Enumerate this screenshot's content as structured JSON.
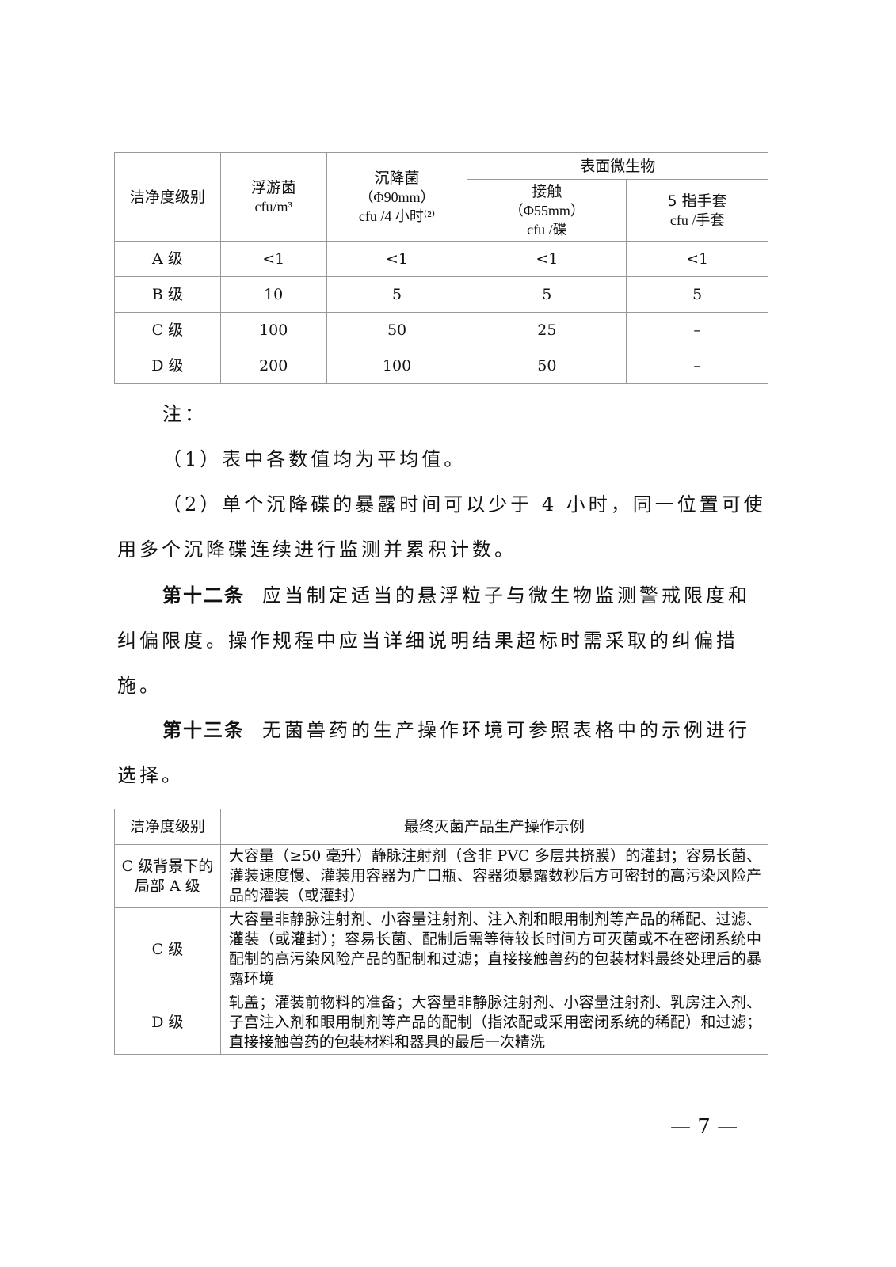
{
  "table1": {
    "headers": {
      "level": "洁净度级别",
      "airborne": "浮游菌",
      "airborne_unit": "cfu/m³",
      "settle": "沉降菌",
      "settle_dia": "（Φ90mm）",
      "settle_unit": "cfu /4 小时⁽²⁾",
      "surface": "表面微生物",
      "contact": "接触",
      "contact_dia": "（Φ55mm）",
      "contact_unit": "cfu /碟",
      "glove": "5 指手套",
      "glove_unit": "cfu /手套"
    },
    "rows": [
      [
        "A 级",
        "<1",
        "<1",
        "<1",
        "<1"
      ],
      [
        "B 级",
        "10",
        "5",
        "5",
        "5"
      ],
      [
        "C 级",
        "100",
        "50",
        "25",
        "–"
      ],
      [
        "D 级",
        "200",
        "100",
        "50",
        "–"
      ]
    ]
  },
  "notes": {
    "label": "注：",
    "n1": "（1）表中各数值均为平均值。",
    "n2": "（2）单个沉降碟的暴露时间可以少于 4 小时，同一位置可使用多个沉降碟连续进行监测并累积计数。"
  },
  "article12": {
    "title": "第十二条",
    "text": "应当制定适当的悬浮粒子与微生物监测警戒限度和纠偏限度。操作规程中应当详细说明结果超标时需采取的纠偏措施。"
  },
  "article13": {
    "title": "第十三条",
    "text": "无菌兽药的生产操作环境可参照表格中的示例进行选择。"
  },
  "table2": {
    "headers": [
      "洁净度级别",
      "最终灭菌产品生产操作示例"
    ],
    "rows": [
      [
        "C 级背景下的局部 A 级",
        "大容量（≥50 毫升）静脉注射剂（含非 PVC 多层共挤膜）的灌封；容易长菌、灌装速度慢、灌装用容器为广口瓶、容器须暴露数秒后方可密封的高污染风险产品的灌装（或灌封）"
      ],
      [
        "C 级",
        "大容量非静脉注射剂、小容量注射剂、注入剂和眼用制剂等产品的稀配、过滤、灌装（或灌封）；容易长菌、配制后需等待较长时间方可灭菌或不在密闭系统中配制的高污染风险产品的配制和过滤；直接接触兽药的包装材料最终处理后的暴露环境"
      ],
      [
        "D 级",
        "轧盖；灌装前物料的准备；大容量非静脉注射剂、小容量注射剂、乳房注入剂、子宫注入剂和眼用制剂等产品的配制（指浓配或采用密闭系统的稀配）和过滤；直接接触兽药的包装材料和器具的最后一次精洗"
      ]
    ]
  },
  "page_number": "— 7 —"
}
